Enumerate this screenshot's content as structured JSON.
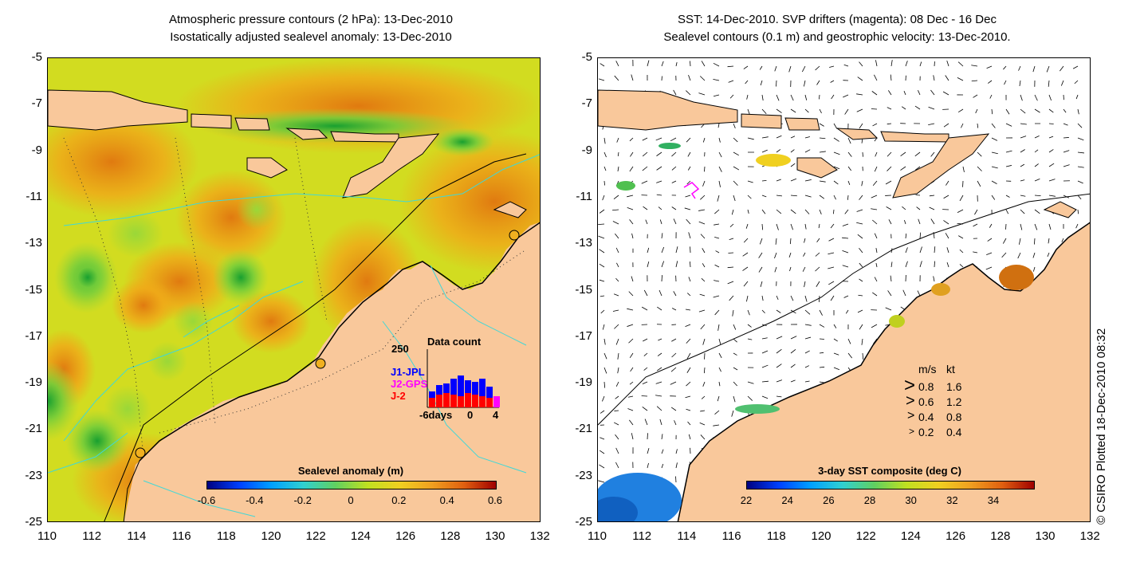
{
  "left_panel": {
    "title_line1": "Atmospheric pressure contours (2 hPa): 13-Dec-2010",
    "title_line2": "Isostatically adjusted sealevel anomaly: 13-Dec-2010",
    "colorbar_title": "Sealevel anomaly (m)",
    "colorbar_ticks": [
      "-0.6",
      "-0.4",
      "-0.2",
      "0",
      "0.2",
      "0.4",
      "0.6"
    ],
    "inset": {
      "title": "Data count",
      "ymax": "250",
      "series": [
        "J1-JPL",
        "J2-GPS",
        "J-2"
      ],
      "series_colors": [
        "#0000ff",
        "#ff00ff",
        "#ff0000"
      ],
      "xticks": [
        "-6days",
        "0",
        "4"
      ]
    }
  },
  "right_panel": {
    "title_line1": "SST: 14-Dec-2010. SVP drifters (magenta): 08 Dec - 16 Dec",
    "title_line2": "Sealevel contours (0.1 m) and geostrophic velocity: 13-Dec-2010.",
    "colorbar_title": "3-day SST composite (deg C)",
    "colorbar_ticks": [
      "22",
      "24",
      "26",
      "28",
      "30",
      "32",
      "34"
    ],
    "speed_legend": {
      "header_ms": "m/s",
      "header_kt": "kt",
      "rows": [
        {
          "ms": "0.8",
          "kt": "1.6"
        },
        {
          "ms": "0.6",
          "kt": "1.2"
        },
        {
          "ms": "0.4",
          "kt": "0.8"
        },
        {
          "ms": "0.2",
          "kt": "0.4"
        }
      ]
    }
  },
  "axes": {
    "y_ticks": [
      "-5",
      "-7",
      "-9",
      "-11",
      "-13",
      "-15",
      "-17",
      "-19",
      "-21",
      "-23",
      "-25"
    ],
    "x_ticks": [
      "110",
      "112",
      "114",
      "116",
      "118",
      "120",
      "122",
      "124",
      "126",
      "128",
      "130",
      "132"
    ]
  },
  "credit": "© CSIRO Plotted 18-Dec-2010 08:32",
  "colors": {
    "land": "#f9c89b",
    "sea_anomaly_base": "#d8e21a",
    "accent_orange": "#f0a218",
    "accent_green": "#5ac830",
    "coast_cyan": "#40d8d8"
  }
}
